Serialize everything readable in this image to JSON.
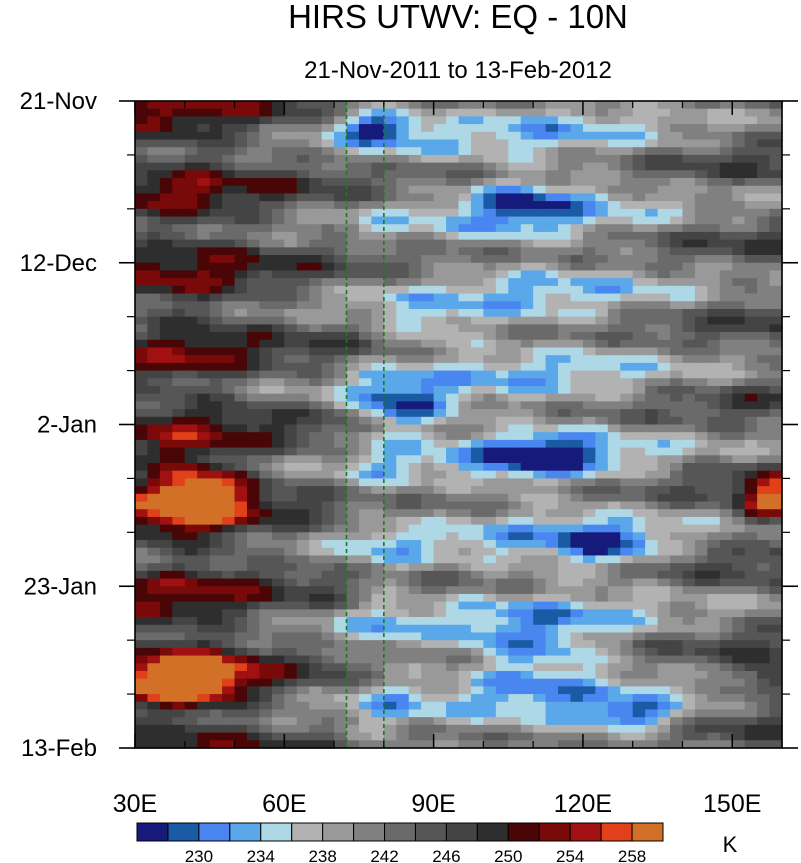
{
  "chart_data": {
    "type": "heatmap",
    "title": "HIRS UTWV: EQ - 10N",
    "subtitle": "21-Nov-2011 to 13-Feb-2012",
    "xaxis": {
      "range": [
        30,
        160
      ],
      "ticks": [
        30,
        60,
        90,
        120,
        150
      ],
      "tick_labels": [
        "30E",
        "60E",
        "90E",
        "120E",
        "150E"
      ]
    },
    "yaxis": {
      "range_days": [
        0,
        84
      ],
      "ticks": [
        0,
        21,
        42,
        63,
        84
      ],
      "tick_labels": [
        "21-Nov",
        "12-Dec",
        "2-Jan",
        "23-Jan",
        "13-Feb"
      ],
      "direction": "downward"
    },
    "reference_lines_lon": [
      72.5,
      80
    ],
    "colorbar": {
      "unit": "K",
      "levels": [
        228,
        230,
        232,
        234,
        236,
        238,
        240,
        242,
        244,
        246,
        248,
        250,
        252,
        254,
        256,
        258
      ],
      "labeled_levels": [
        230,
        234,
        238,
        242,
        246,
        250,
        254,
        258
      ],
      "colors": [
        "#161a7a",
        "#1b5aa5",
        "#4a86f0",
        "#5aa8ea",
        "#aed8e6",
        "#b2b2b2",
        "#999999",
        "#808080",
        "#6a6a6a",
        "#565656",
        "#444444",
        "#2e2e2e",
        "#4a0606",
        "#7a0a0a",
        "#a11111",
        "#e0401a",
        "#d27028"
      ]
    }
  }
}
